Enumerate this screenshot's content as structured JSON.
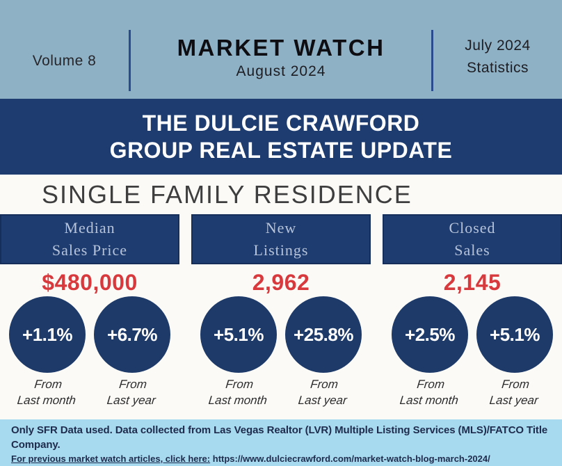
{
  "header": {
    "volume": "Volume 8",
    "title": "MARKET WATCH",
    "subtitle": "August 2024",
    "stats_line1": "July 2024",
    "stats_line2": "Statistics"
  },
  "banner": {
    "line1": "THE DULCIE CRAWFORD",
    "line2": "GROUP REAL ESTATE UPDATE"
  },
  "section": {
    "heading": "SINGLE FAMILY RESIDENCE",
    "columns": [
      {
        "title_line1": "Median",
        "title_line2": "Sales Price",
        "value": "$480,000",
        "stats": [
          {
            "pct": "+1.1%",
            "from": "From",
            "period": "Last month"
          },
          {
            "pct": "+6.7%",
            "from": "From",
            "period": "Last year"
          }
        ]
      },
      {
        "title_line1": "New",
        "title_line2": "Listings",
        "value": "2,962",
        "stats": [
          {
            "pct": "+5.1%",
            "from": "From",
            "period": "Last month"
          },
          {
            "pct": "+25.8%",
            "from": "From",
            "period": "Last year"
          }
        ]
      },
      {
        "title_line1": "Closed",
        "title_line2": "Sales",
        "value": "2,145",
        "stats": [
          {
            "pct": "+2.5%",
            "from": "From",
            "period": "Last month"
          },
          {
            "pct": "+5.1%",
            "from": "From",
            "period": "Last year"
          }
        ]
      }
    ]
  },
  "footer": {
    "note": "Only SFR Data used. Data collected from Las Vegas Realtor (LVR) Multiple Listing Services (MLS)/FATCO Title Company.",
    "link_label": "For previous market watch articles, click here:",
    "link_url": "https://www.dulciecrawford.com/market-watch-blog-march-2024/"
  },
  "colors": {
    "header_bg": "#8FB1C6",
    "navy": "#1E3C6F",
    "value_red": "#D8393C",
    "footer_bg": "#A7DAEE",
    "divider_blue": "#2B4C8C"
  }
}
